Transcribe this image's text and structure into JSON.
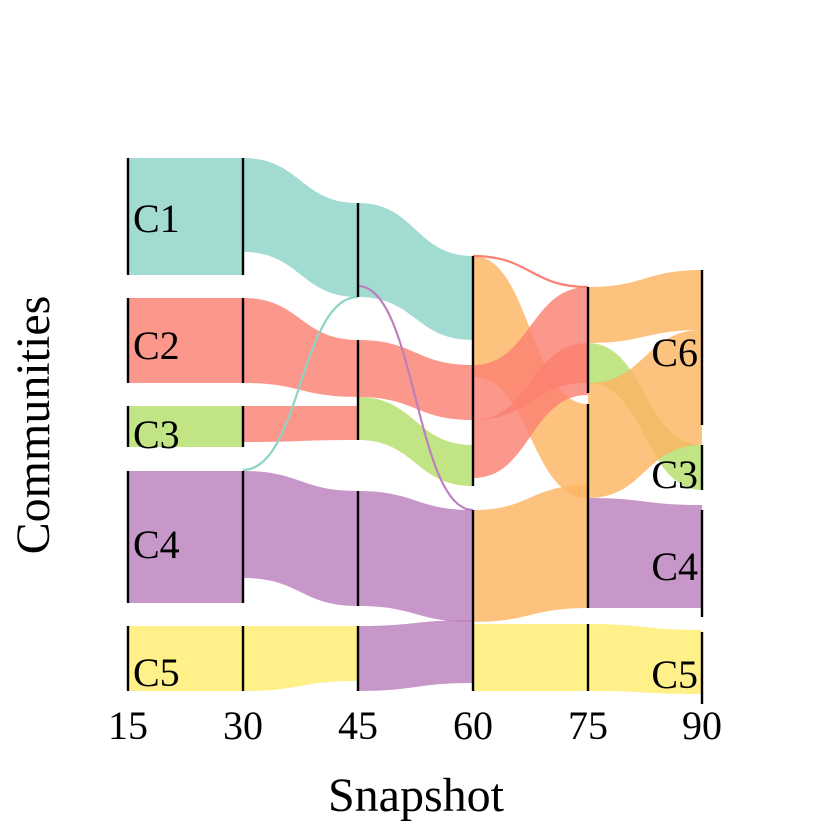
{
  "chart_data": {
    "type": "alluvial",
    "xlabel": "Snapshot",
    "ylabel": "Communities",
    "x_ticks": [
      "15",
      "30",
      "45",
      "60",
      "75",
      "90"
    ],
    "colors": {
      "C1": "#8dd3c7",
      "C2": "#fb8072",
      "C3": "#b3de69",
      "C4": "#bc80bd",
      "C5": "#ffed6f",
      "C6": "#fdb462"
    },
    "community_labels": [
      {
        "text": "C1",
        "snapshot": 15,
        "community": "C1"
      },
      {
        "text": "C2",
        "snapshot": 15,
        "community": "C2"
      },
      {
        "text": "C3",
        "snapshot": 15,
        "community": "C3"
      },
      {
        "text": "C4",
        "snapshot": 15,
        "community": "C4"
      },
      {
        "text": "C5",
        "snapshot": 15,
        "community": "C5"
      },
      {
        "text": "C6",
        "snapshot": 90,
        "community": "C6"
      },
      {
        "text": "C3",
        "snapshot": 90,
        "community": "C3"
      },
      {
        "text": "C4",
        "snapshot": 90,
        "community": "C4"
      },
      {
        "text": "C5",
        "snapshot": 90,
        "community": "C5"
      }
    ]
  }
}
